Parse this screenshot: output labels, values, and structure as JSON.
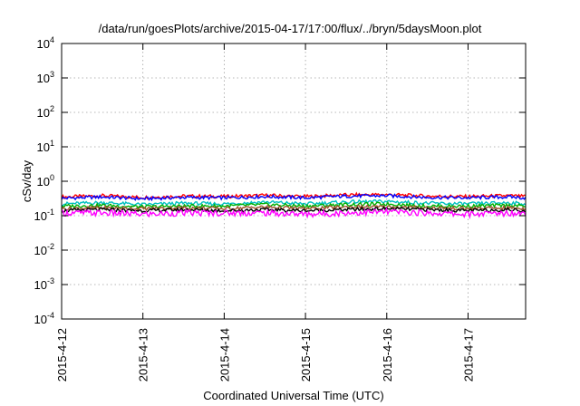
{
  "chart_data": {
    "type": "line",
    "title": "/data/run/goesPlots/archive/2015-04-17/17:00/flux/../bryn/5daysMoon.plot",
    "xlabel": "Coordinated Universal Time (UTC)",
    "ylabel": "cSv/day",
    "y_scale": "log",
    "ylim": [
      0.0001,
      10000
    ],
    "xlim": [
      "2015-04-12",
      "2015-04-17 17:00"
    ],
    "grid": true,
    "x_ticks": [
      "2015-4-12",
      "2015-4-13",
      "2015-4-14",
      "2015-4-15",
      "2015-4-16",
      "2015-4-17"
    ],
    "y_ticks": [
      {
        "base": "10",
        "exp": "-4"
      },
      {
        "base": "10",
        "exp": "-3"
      },
      {
        "base": "10",
        "exp": "-2"
      },
      {
        "base": "10",
        "exp": "-1"
      },
      {
        "base": "10",
        "exp": "0"
      },
      {
        "base": "10",
        "exp": "1"
      },
      {
        "base": "10",
        "exp": "2"
      },
      {
        "base": "10",
        "exp": "3"
      },
      {
        "base": "10",
        "exp": "4"
      }
    ],
    "x_dates": [
      "2015-04-12",
      "2015-04-12 12:00",
      "2015-04-13",
      "2015-04-13 12:00",
      "2015-04-14",
      "2015-04-14 12:00",
      "2015-04-15",
      "2015-04-15 12:00",
      "2015-04-16",
      "2015-04-16 12:00",
      "2015-04-17",
      "2015-04-17 12:00",
      "2015-04-17 17:00"
    ],
    "series": [
      {
        "color": "#ff0000",
        "values": [
          0.35,
          0.38,
          0.34,
          0.37,
          0.36,
          0.39,
          0.36,
          0.4,
          0.41,
          0.37,
          0.36,
          0.38,
          0.36
        ]
      },
      {
        "color": "#0000ff",
        "values": [
          0.32,
          0.35,
          0.31,
          0.34,
          0.33,
          0.36,
          0.33,
          0.37,
          0.38,
          0.34,
          0.33,
          0.35,
          0.33
        ]
      },
      {
        "color": "#00c0c0",
        "values": [
          0.22,
          0.24,
          0.21,
          0.23,
          0.22,
          0.25,
          0.22,
          0.25,
          0.26,
          0.23,
          0.22,
          0.24,
          0.22
        ]
      },
      {
        "color": "#00b000",
        "values": [
          0.19,
          0.2,
          0.18,
          0.19,
          0.19,
          0.21,
          0.19,
          0.21,
          0.22,
          0.19,
          0.19,
          0.2,
          0.19
        ]
      },
      {
        "color": "#a0522d",
        "values": [
          0.16,
          0.17,
          0.16,
          0.17,
          0.16,
          0.18,
          0.16,
          0.18,
          0.18,
          0.17,
          0.16,
          0.17,
          0.16
        ]
      },
      {
        "color": "#000000",
        "values": [
          0.14,
          0.15,
          0.14,
          0.15,
          0.14,
          0.15,
          0.14,
          0.15,
          0.16,
          0.15,
          0.14,
          0.15,
          0.14
        ]
      },
      {
        "color": "#ff00ff",
        "values": [
          0.12,
          0.12,
          0.11,
          0.12,
          0.12,
          0.12,
          0.11,
          0.12,
          0.13,
          0.12,
          0.11,
          0.12,
          0.12
        ]
      }
    ]
  }
}
